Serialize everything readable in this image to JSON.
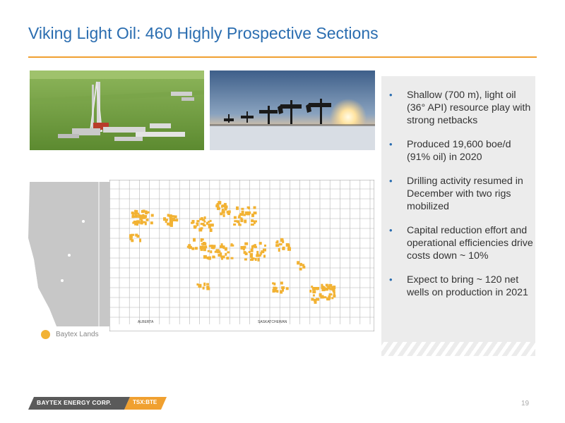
{
  "slide": {
    "title": "Viking Light Oil:  460 Highly Prospective Sections",
    "page_number": "19"
  },
  "bullets": [
    "Shallow (700 m), light oil (36° API) resource play with strong netbacks",
    "Produced 19,600 boe/d (91% oil) in 2020",
    "Drilling activity resumed in December with two rigs mobilized",
    "Capital reduction effort and operational efficiencies drive costs down ~ 10%",
    "Expect to bring ~ 120 net wells on production in 2021"
  ],
  "map": {
    "legend_label": "Baytex Lands",
    "province_left": "ALBERTA",
    "province_right": "SASKATCHEWAN",
    "land_color": "#f2b233"
  },
  "footer": {
    "company": "BAYTEX ENERGY CORP.",
    "ticker": "TSX:BTE",
    "accent_color": "#f0a030"
  }
}
